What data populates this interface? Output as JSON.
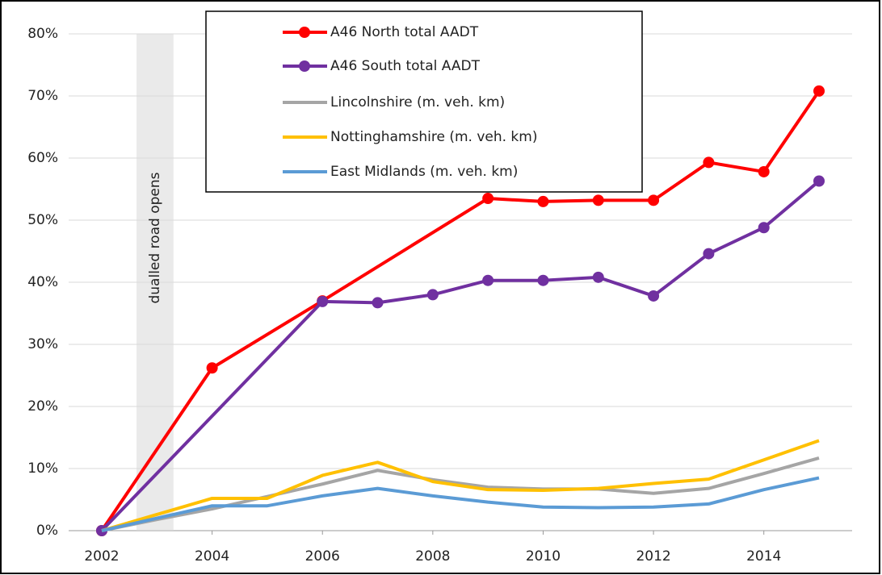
{
  "chart_data": {
    "type": "line",
    "annotation": "dualled road opens",
    "shaded_span": [
      2002.63,
      2003.3
    ],
    "xlim": [
      2001.4,
      2015.6
    ],
    "xticks": [
      2002,
      2004,
      2006,
      2008,
      2010,
      2012,
      2014
    ],
    "ylim": [
      0,
      80
    ],
    "yticks": [
      {
        "value": 0,
        "label": "0%"
      },
      {
        "value": 10,
        "label": "10%"
      },
      {
        "value": 20,
        "label": "20%"
      },
      {
        "value": 30,
        "label": "30%"
      },
      {
        "value": 40,
        "label": "40%"
      },
      {
        "value": 50,
        "label": "50%"
      },
      {
        "value": 60,
        "label": "60%"
      },
      {
        "value": 70,
        "label": "70%"
      },
      {
        "value": 80,
        "label": "80%"
      }
    ],
    "grid": true,
    "series": [
      {
        "name": "A46 North total AADT",
        "color": "#ff0000",
        "markers": true,
        "x": [
          2002,
          2004,
          2006,
          2009,
          2010,
          2011,
          2012,
          2013,
          2014,
          2015
        ],
        "values": [
          0,
          26.2,
          37,
          53.5,
          53,
          53.2,
          53.2,
          59.3,
          57.8,
          70.8
        ]
      },
      {
        "name": "A46 South total AADT",
        "color": "#7030a0",
        "markers": true,
        "x": [
          2002,
          2006,
          2007,
          2008,
          2009,
          2010,
          2011,
          2012,
          2013,
          2014,
          2015
        ],
        "values": [
          0,
          36.9,
          36.7,
          38,
          40.3,
          40.3,
          40.8,
          37.8,
          44.6,
          48.8,
          56.3
        ]
      },
      {
        "name": "Lincolnshire (m. veh. km)",
        "color": "#a5a5a5",
        "markers": false,
        "x": [
          2002,
          2003,
          2004,
          2005,
          2006,
          2007,
          2008,
          2009,
          2010,
          2011,
          2012,
          2013,
          2014,
          2015
        ],
        "values": [
          0,
          1.8,
          3.5,
          5.5,
          7.5,
          9.7,
          8.2,
          7,
          6.7,
          6.7,
          6,
          6.8,
          9.2,
          11.7
        ]
      },
      {
        "name": "Nottinghamshire (m. veh. km)",
        "color": "#ffc000",
        "markers": false,
        "x": [
          2002,
          2003,
          2004,
          2005,
          2006,
          2007,
          2008,
          2009,
          2010,
          2011,
          2012,
          2013,
          2014,
          2015
        ],
        "values": [
          0,
          2.6,
          5.2,
          5.2,
          8.9,
          11,
          7.9,
          6.6,
          6.5,
          6.8,
          7.6,
          8.3,
          11.4,
          14.5
        ]
      },
      {
        "name": "East Midlands (m. veh. km)",
        "color": "#5b9bd5",
        "markers": false,
        "x": [
          2002,
          2003,
          2004,
          2005,
          2006,
          2007,
          2008,
          2009,
          2010,
          2011,
          2012,
          2013,
          2014,
          2015
        ],
        "values": [
          0,
          2,
          4,
          4,
          5.6,
          6.8,
          5.6,
          4.6,
          3.8,
          3.7,
          3.8,
          4.3,
          6.6,
          8.5
        ]
      }
    ]
  }
}
